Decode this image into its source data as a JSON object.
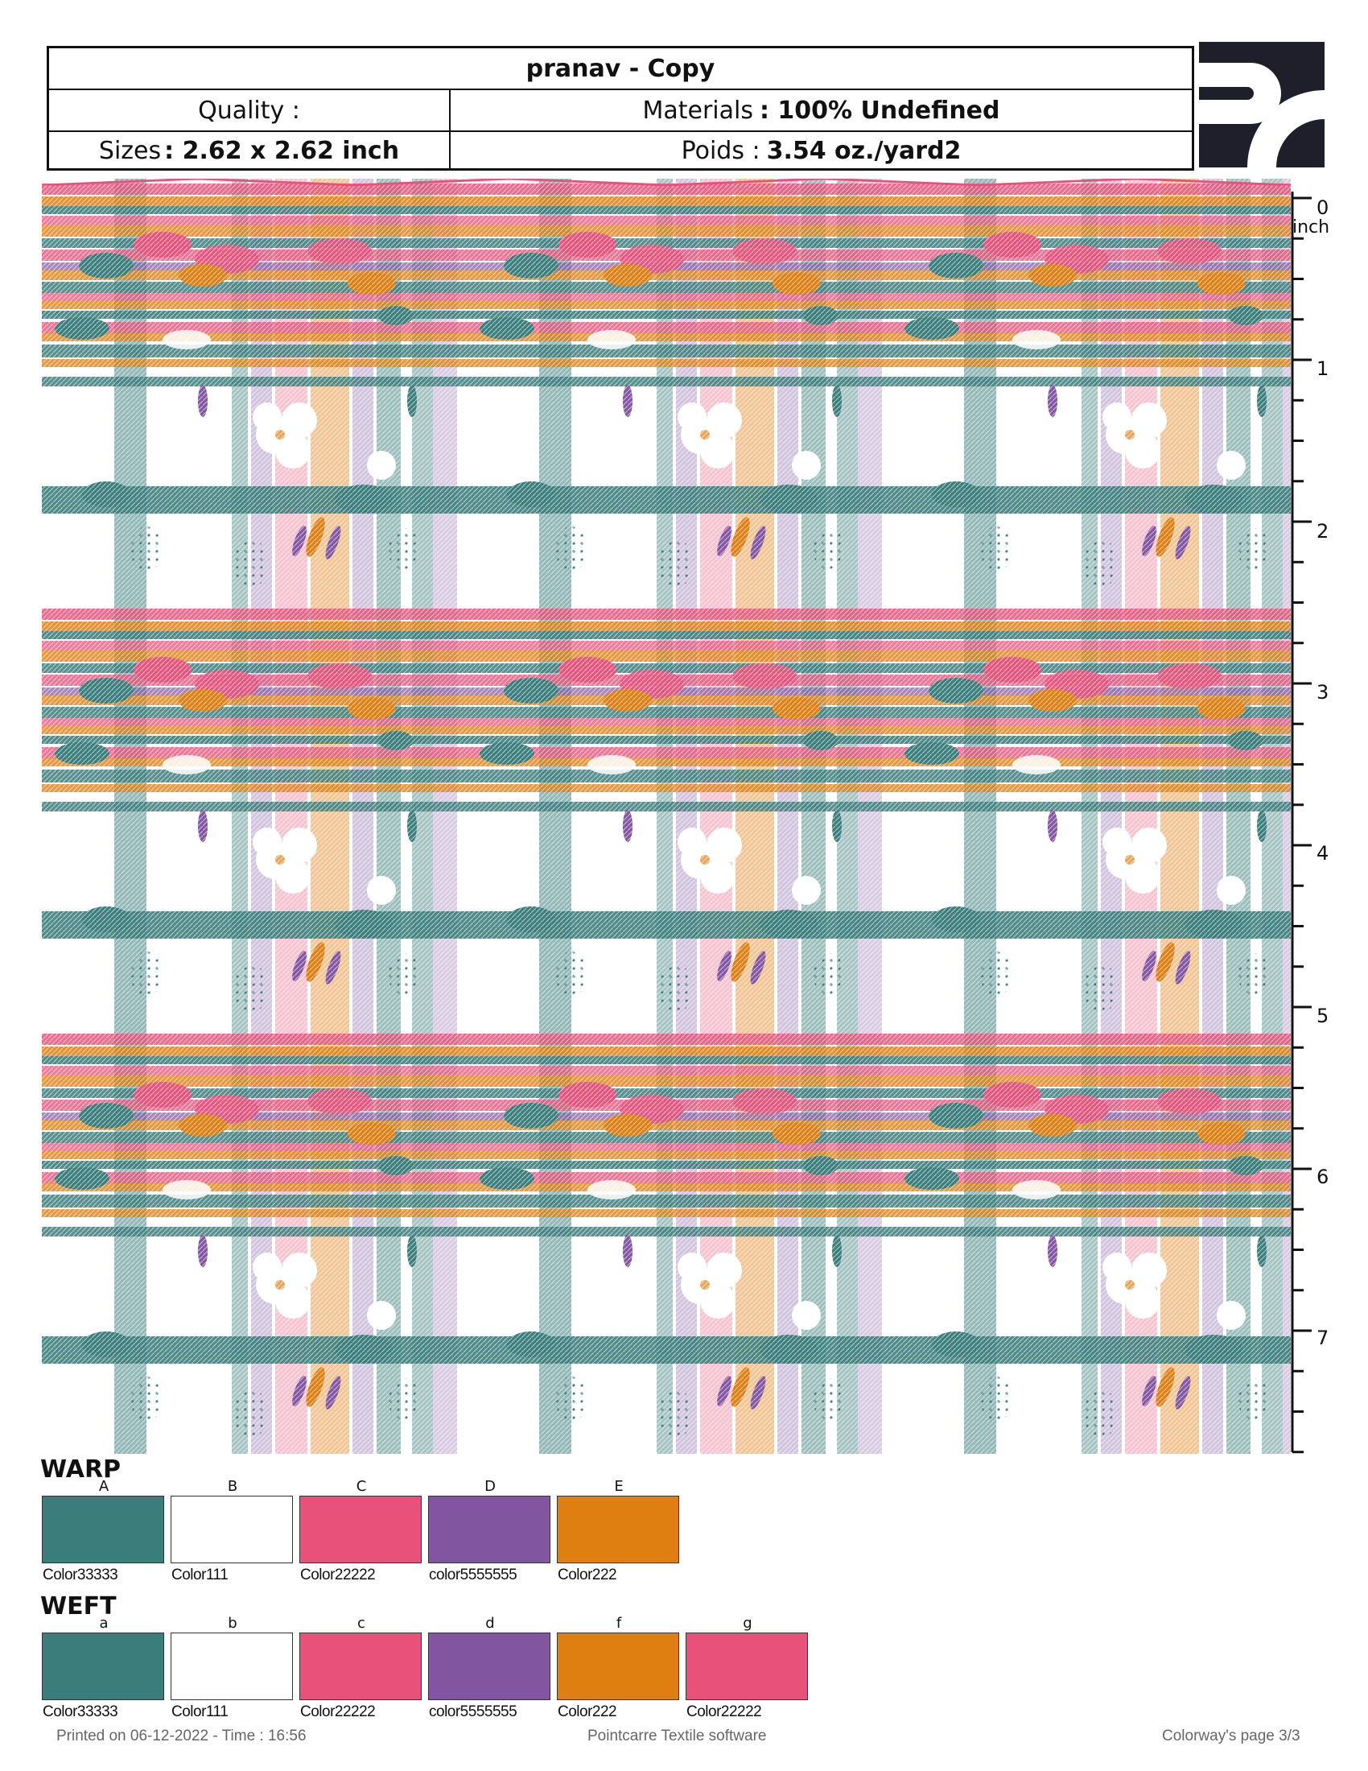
{
  "header": {
    "title": "pranav - Copy",
    "quality_label": "Quality :",
    "materials_label": "Materials",
    "materials_value": ": 100% Undefined",
    "sizes_label": "Sizes",
    "sizes_value": ": 2.62 x 2.62  inch",
    "poids_label": "Poids :",
    "poids_value": "3.54 oz./yard2"
  },
  "ruler": {
    "unit": "inch",
    "labels": [
      "0",
      "1",
      "2",
      "3",
      "4",
      "5",
      "6",
      "7"
    ]
  },
  "palette": {
    "teal": "#3a7d7b",
    "white": "#ffffff",
    "pink": "#e8527a",
    "purple": "#8155a0",
    "orange": "#df7f12"
  },
  "warp": {
    "title": "WARP",
    "colors": [
      {
        "letter": "A",
        "name": "Color33333",
        "hex": "#3a7d7b"
      },
      {
        "letter": "B",
        "name": "Color111",
        "hex": "#ffffff"
      },
      {
        "letter": "C",
        "name": "Color22222",
        "hex": "#e8527a"
      },
      {
        "letter": "D",
        "name": "color5555555",
        "hex": "#8155a0"
      },
      {
        "letter": "E",
        "name": "Color222",
        "hex": "#df7f12"
      }
    ]
  },
  "weft": {
    "title": "WEFT",
    "colors": [
      {
        "letter": "a",
        "name": "Color33333",
        "hex": "#3a7d7b"
      },
      {
        "letter": "b",
        "name": "Color111",
        "hex": "#ffffff"
      },
      {
        "letter": "c",
        "name": "Color22222",
        "hex": "#e8527a"
      },
      {
        "letter": "d",
        "name": "color5555555",
        "hex": "#8155a0"
      },
      {
        "letter": "f",
        "name": "Color222",
        "hex": "#df7f12"
      },
      {
        "letter": "g",
        "name": "Color22222",
        "hex": "#e8527a"
      }
    ]
  },
  "footer": {
    "printed": "Printed on 06-12-2022 - Time : 16:56",
    "software": "Pointcarre Textile software",
    "page": "Colorway's page 3/3"
  }
}
